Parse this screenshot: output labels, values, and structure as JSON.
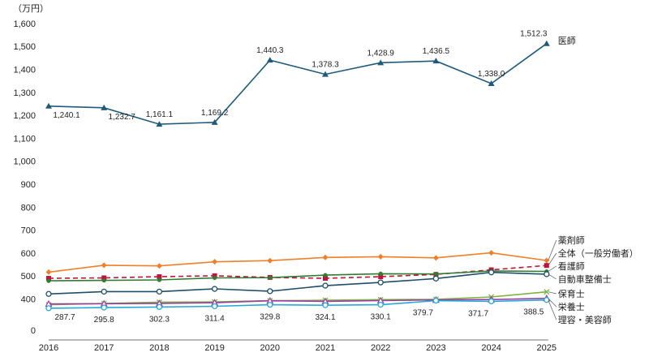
{
  "chart_data": {
    "type": "line",
    "unit_label": "（万円）",
    "x": [
      "2016",
      "2017",
      "2018",
      "2019",
      "2020",
      "2021",
      "2022",
      "2023",
      "2024",
      "2025"
    ],
    "y_ticks": [
      "0",
      "400",
      "500",
      "600",
      "700",
      "800",
      "900",
      "1,000",
      "1,100",
      "1,200",
      "1,300",
      "1,400",
      "1,500",
      "1,600"
    ],
    "y_range": [
      0,
      1600
    ],
    "axis_break": "0 to 400 compressed",
    "grid": false,
    "series": [
      {
        "name": "医師",
        "color": "#1f5a7a",
        "marker": "triangle",
        "dashed": false,
        "values": [
          1240.1,
          1232.7,
          1161.1,
          1169.2,
          1440.3,
          1378.3,
          1428.9,
          1436.5,
          1338.0,
          1512.3
        ],
        "value_labels": [
          "1,240.1",
          "1,232.7",
          "1,161.1",
          "1,169.2",
          "1,440.3",
          "1,378.3",
          "1,428.9",
          "1,436.5",
          "1,338.0",
          "1,512.3"
        ]
      },
      {
        "name": "薬剤師",
        "color": "#f07f2a",
        "marker": "diamond",
        "dashed": false,
        "values": [
          517,
          547,
          544,
          562,
          567,
          581,
          584,
          579,
          601,
          568
        ]
      },
      {
        "name": "全体（一般労働者）",
        "color": "#c0143c",
        "marker": "square",
        "dashed": true,
        "values": [
          490,
          492,
          497,
          501,
          494,
          490,
          497,
          507,
          527,
          546
        ]
      },
      {
        "name": "看護師",
        "color": "#2e7d32",
        "marker": "dot",
        "dashed": false,
        "values": [
          479,
          481,
          483,
          492,
          493,
          504,
          510,
          509,
          522,
          520
        ]
      },
      {
        "name": "自動車整備士",
        "color": "#1f4e69",
        "marker": "circle",
        "dashed": false,
        "values": [
          422,
          432,
          432,
          444,
          434,
          458,
          472,
          489,
          516,
          508
        ]
      },
      {
        "name": "保育士",
        "color": "#7cb342",
        "marker": "x",
        "dashed": false,
        "values": [
          330,
          345,
          361,
          364,
          379,
          384,
          392,
          396,
          409,
          431
        ]
      },
      {
        "name": "栄養士",
        "color": "#9c3fa3",
        "marker": "triangle-open",
        "dashed": false,
        "values": [
          340,
          343,
          347,
          355,
          378,
          371,
          380,
          389,
          393,
          403
        ]
      },
      {
        "name": "理容・美容師",
        "color": "#29a8d8",
        "marker": "circle",
        "dashed": false,
        "values": [
          287.7,
          295.8,
          302.3,
          311.4,
          329.8,
          324.1,
          330.1,
          379.7,
          371.7,
          388.5
        ],
        "value_labels": [
          "287.7",
          "295.8",
          "302.3",
          "311.4",
          "329.8",
          "324.1",
          "330.1",
          "379.7",
          "371.7",
          "388.5"
        ]
      }
    ]
  }
}
